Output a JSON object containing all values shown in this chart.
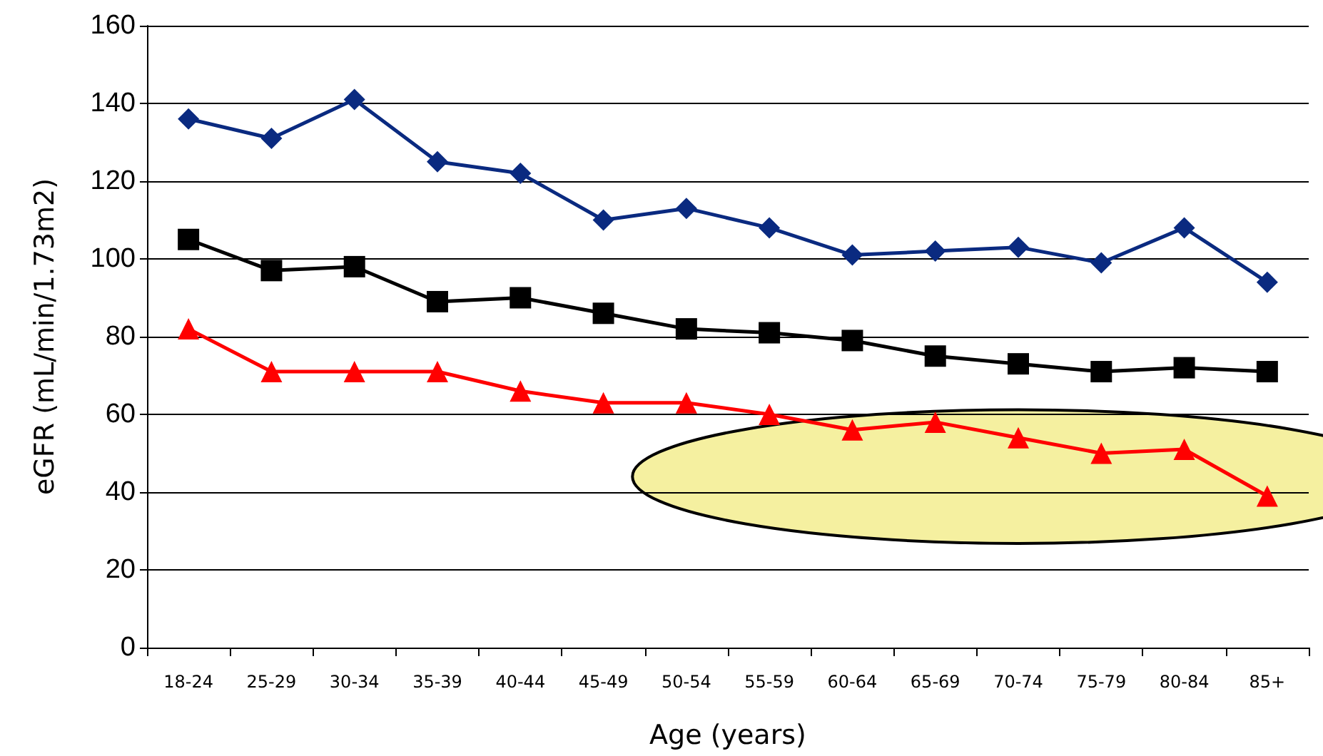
{
  "chart_data": {
    "type": "line",
    "xlabel": "Age (years)",
    "ylabel": "eGFR (mL/min/1.73m2)",
    "categories": [
      "18-24",
      "25-29",
      "30-34",
      "35-39",
      "40-44",
      "45-49",
      "50-54",
      "55-59",
      "60-64",
      "65-69",
      "70-74",
      "75-79",
      "80-84",
      "85+"
    ],
    "series": [
      {
        "color": "#0a2a80",
        "marker": "diamond",
        "values": [
          136,
          131,
          141,
          125,
          122,
          110,
          113,
          108,
          101,
          102,
          103,
          99,
          108,
          94
        ]
      },
      {
        "color": "#000000",
        "marker": "square",
        "values": [
          105,
          97,
          98,
          89,
          90,
          86,
          82,
          81,
          79,
          75,
          73,
          71,
          72,
          71
        ]
      },
      {
        "color": "#ff0000",
        "marker": "triangle",
        "values": [
          82,
          71,
          71,
          71,
          66,
          63,
          63,
          60,
          56,
          58,
          54,
          50,
          51,
          39
        ]
      }
    ],
    "ylim": [
      0,
      160
    ],
    "yticks": [
      0,
      20,
      40,
      60,
      80,
      100,
      120,
      140,
      160
    ],
    "grid": "y"
  }
}
